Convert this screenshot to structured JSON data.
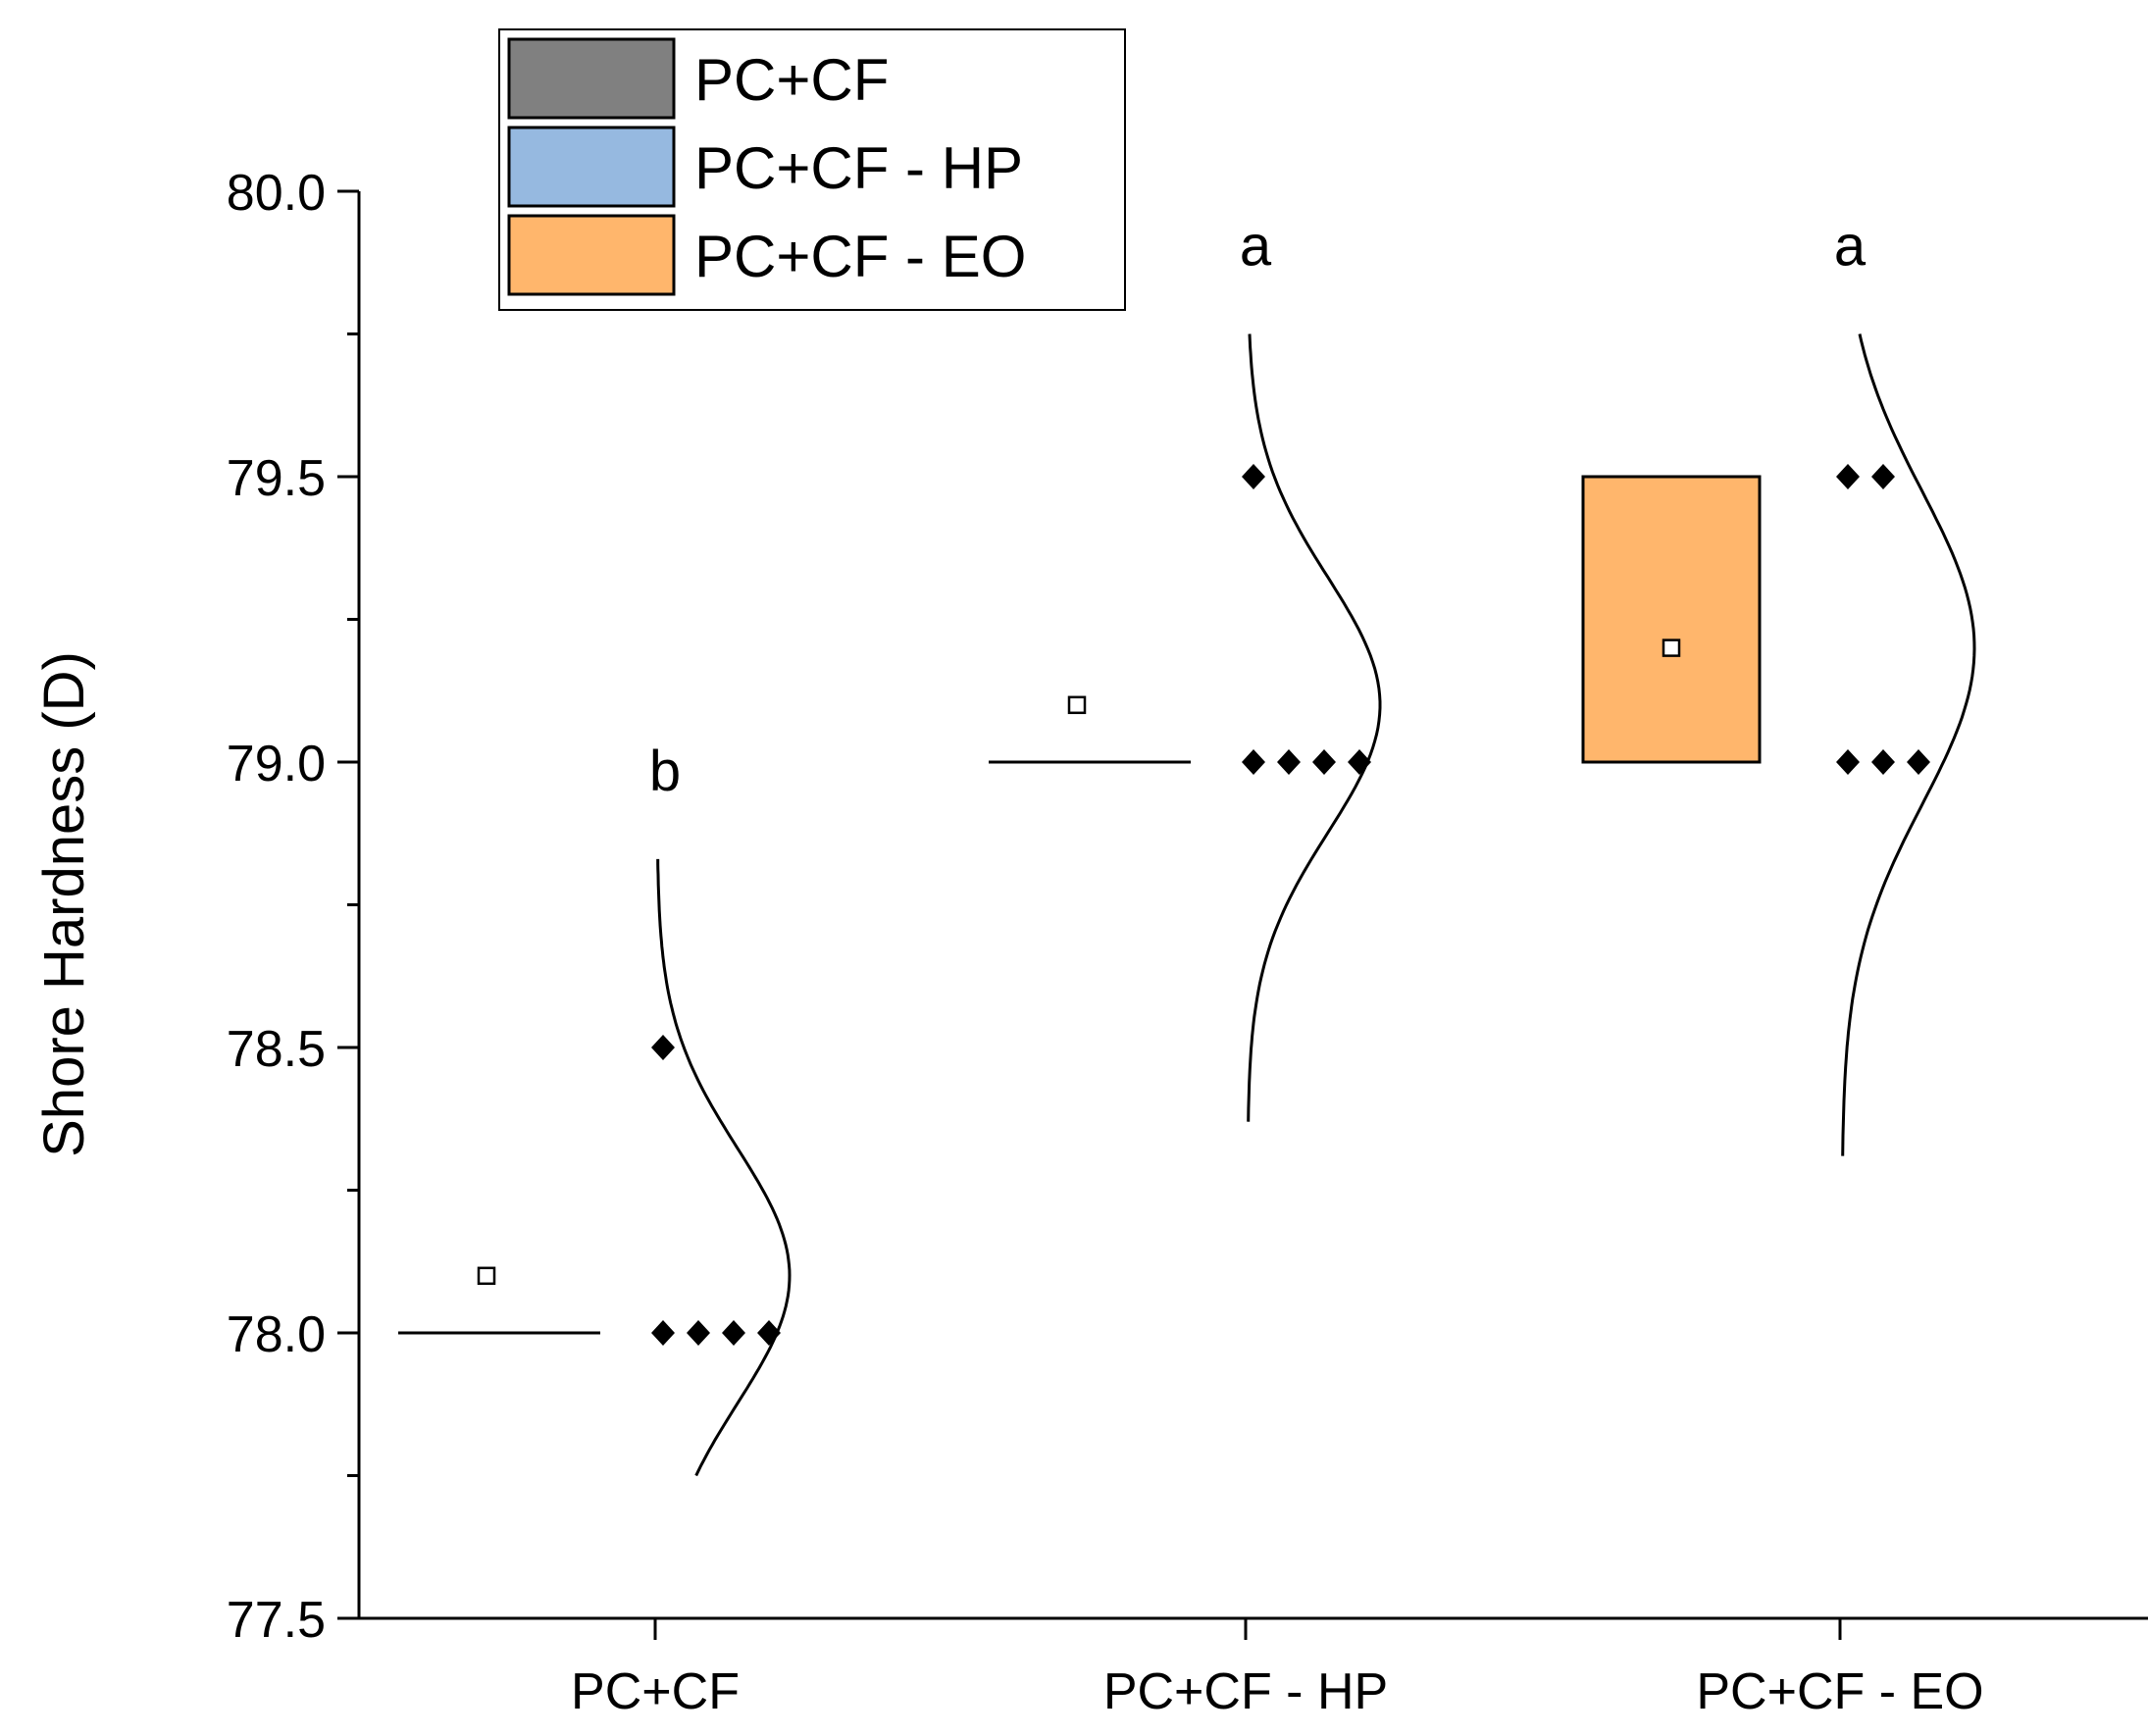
{
  "chart_data": {
    "type": "box",
    "ylabel": "Shore Hardness (D)",
    "xlabel": "",
    "ylim": [
      77.5,
      80.0
    ],
    "y_major_ticks": [
      77.5,
      78.0,
      78.5,
      79.0,
      79.5,
      80.0
    ],
    "y_tick_labels": [
      "77.5",
      "78.0",
      "78.5",
      "79.0",
      "79.5",
      "80.0"
    ],
    "y_minor_ticks": [
      77.75,
      78.25,
      78.75,
      79.25,
      79.75
    ],
    "legend": {
      "position": "top-left",
      "frame": true
    },
    "groups": [
      {
        "name": "PC+CF",
        "color": "#808080",
        "letter": "b",
        "box_q1": 78.0,
        "box_q3": 78.0,
        "mean": 78.1,
        "points": [
          78.5,
          78.0,
          78.0,
          78.0,
          78.0
        ],
        "sd": 0.2236,
        "curve_range": [
          77.75,
          78.83
        ]
      },
      {
        "name": "PC+CF - HP",
        "color": "#96B9E0",
        "letter": "a",
        "box_q1": 79.0,
        "box_q3": 79.0,
        "mean": 79.1,
        "points": [
          79.5,
          79.0,
          79.0,
          79.0,
          79.0
        ],
        "sd": 0.2236,
        "curve_range": [
          78.37,
          79.75
        ]
      },
      {
        "name": "PC+CF - EO",
        "color": "#FFB66C",
        "letter": "a",
        "box_q1": 79.0,
        "box_q3": 79.5,
        "mean": 79.2,
        "points": [
          79.5,
          79.5,
          79.0,
          79.0,
          79.0
        ],
        "sd": 0.2739,
        "curve_range": [
          78.31,
          79.75
        ]
      }
    ]
  }
}
